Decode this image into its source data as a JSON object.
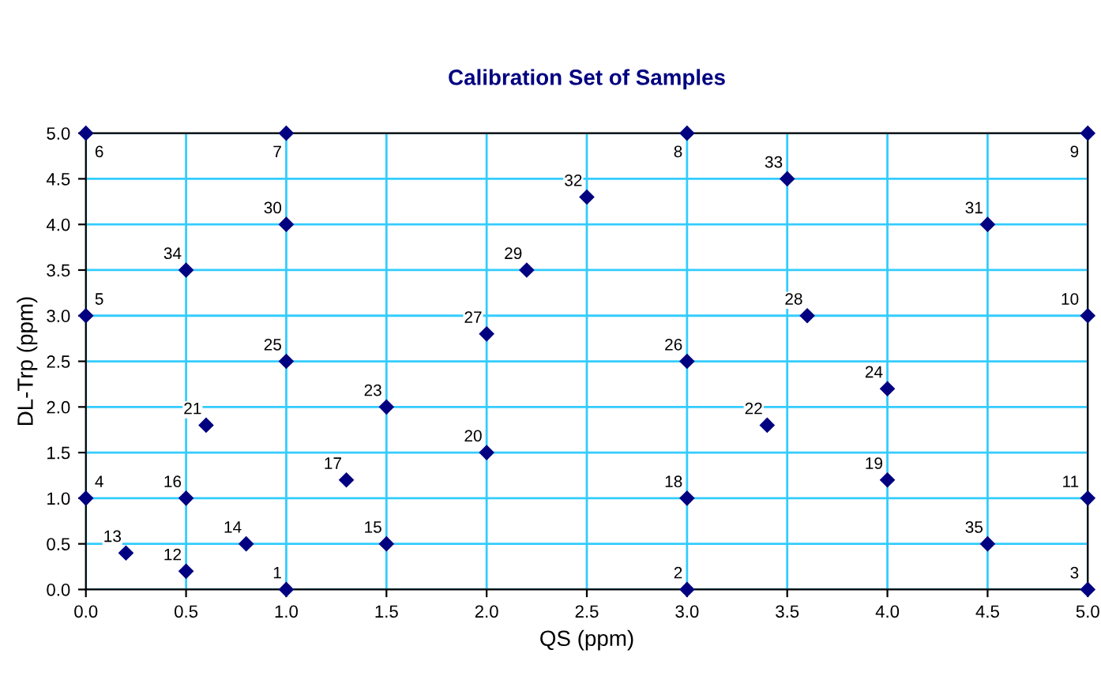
{
  "chart_data": {
    "type": "scatter",
    "title": "Calibration Set of Samples",
    "xlabel": "QS (ppm)",
    "ylabel": "DL-Trp (ppm)",
    "marker": "diamond",
    "grid": true,
    "xlim": [
      0,
      5
    ],
    "ylim": [
      0,
      5
    ],
    "xticks": [
      {
        "value": 0,
        "label": "0.0"
      },
      {
        "value": 0.5,
        "label": "0.5"
      },
      {
        "value": 1,
        "label": "1.0"
      },
      {
        "value": 1.5,
        "label": "1.5"
      },
      {
        "value": 2,
        "label": "2.0"
      },
      {
        "value": 2.5,
        "label": "2.5"
      },
      {
        "value": 3,
        "label": "3.0"
      },
      {
        "value": 3.5,
        "label": "3.5"
      },
      {
        "value": 4,
        "label": "4.0"
      },
      {
        "value": 4.5,
        "label": "4.5"
      },
      {
        "value": 5,
        "label": "5.0"
      }
    ],
    "yticks": [
      {
        "value": 0,
        "label": "0.0"
      },
      {
        "value": 0.5,
        "label": "0.5"
      },
      {
        "value": 1,
        "label": "1.0"
      },
      {
        "value": 1.5,
        "label": "1.5"
      },
      {
        "value": 2,
        "label": "2.0"
      },
      {
        "value": 2.5,
        "label": "2.5"
      },
      {
        "value": 3,
        "label": "3.0"
      },
      {
        "value": 3.5,
        "label": "3.5"
      },
      {
        "value": 4,
        "label": "4.0"
      },
      {
        "value": 4.5,
        "label": "4.5"
      },
      {
        "value": 5,
        "label": "5.0"
      }
    ],
    "series": [
      {
        "color": "#000080",
        "x": [
          1.0,
          3.0,
          5.0,
          0,
          0,
          0,
          1.0,
          3.0,
          5.0,
          5.0,
          5.0,
          0.5,
          0.2,
          0.8,
          1.5,
          0.5,
          1.3,
          3.0,
          4.0,
          2.0,
          0.6,
          3.4,
          1.5,
          4.0,
          1.0,
          3.0,
          2.0,
          3.6,
          2.2,
          1.0,
          4.5,
          2.5,
          3.5,
          0.5,
          4.5
        ],
        "values": [
          0,
          0,
          0,
          1.0,
          3.0,
          5.0,
          5.0,
          5.0,
          5.0,
          3.0,
          1.0,
          0.2,
          0.4,
          0.5,
          0.5,
          1.0,
          1.2,
          1.0,
          1.2,
          1.5,
          1.8,
          1.8,
          2.0,
          2.2,
          2.5,
          2.5,
          2.8,
          3.0,
          3.5,
          4.0,
          4.0,
          4.3,
          4.5,
          3.5,
          0.5
        ]
      }
    ],
    "annotations": [
      {
        "text": "1",
        "x": 1.0,
        "y": 0
      },
      {
        "text": "2",
        "x": 3.0,
        "y": 0
      },
      {
        "text": "3",
        "x": 5.0,
        "y": 0
      },
      {
        "text": "4",
        "x": 0,
        "y": 1.0
      },
      {
        "text": "5",
        "x": 0,
        "y": 3.0
      },
      {
        "text": "6",
        "x": 0,
        "y": 5.0
      },
      {
        "text": "7",
        "x": 1.0,
        "y": 5.0
      },
      {
        "text": "8",
        "x": 3.0,
        "y": 5.0
      },
      {
        "text": "9",
        "x": 5.0,
        "y": 5.0
      },
      {
        "text": "10",
        "x": 5.0,
        "y": 3.0
      },
      {
        "text": "11",
        "x": 5.0,
        "y": 1.0
      },
      {
        "text": "12",
        "x": 0.5,
        "y": 0.2
      },
      {
        "text": "13",
        "x": 0.2,
        "y": 0.4
      },
      {
        "text": "14",
        "x": 0.8,
        "y": 0.5
      },
      {
        "text": "15",
        "x": 1.5,
        "y": 0.5
      },
      {
        "text": "16",
        "x": 0.5,
        "y": 1.0
      },
      {
        "text": "17",
        "x": 1.3,
        "y": 1.2
      },
      {
        "text": "18",
        "x": 3.0,
        "y": 1.0
      },
      {
        "text": "19",
        "x": 4.0,
        "y": 1.2
      },
      {
        "text": "20",
        "x": 2.0,
        "y": 1.5
      },
      {
        "text": "21",
        "x": 0.6,
        "y": 1.8
      },
      {
        "text": "22",
        "x": 3.4,
        "y": 1.8
      },
      {
        "text": "23",
        "x": 1.5,
        "y": 2.0
      },
      {
        "text": "24",
        "x": 4.0,
        "y": 2.2
      },
      {
        "text": "25",
        "x": 1.0,
        "y": 2.5
      },
      {
        "text": "26",
        "x": 3.0,
        "y": 2.5
      },
      {
        "text": "27",
        "x": 2.0,
        "y": 2.8
      },
      {
        "text": "28",
        "x": 3.6,
        "y": 3.0
      },
      {
        "text": "29",
        "x": 2.2,
        "y": 3.5
      },
      {
        "text": "30",
        "x": 1.0,
        "y": 4.0
      },
      {
        "text": "31",
        "x": 4.5,
        "y": 4.0
      },
      {
        "text": "32",
        "x": 2.5,
        "y": 4.3
      },
      {
        "text": "33",
        "x": 3.5,
        "y": 4.5
      },
      {
        "text": "34",
        "x": 0.5,
        "y": 3.5
      },
      {
        "text": "35",
        "x": 4.5,
        "y": 0.5
      }
    ]
  }
}
